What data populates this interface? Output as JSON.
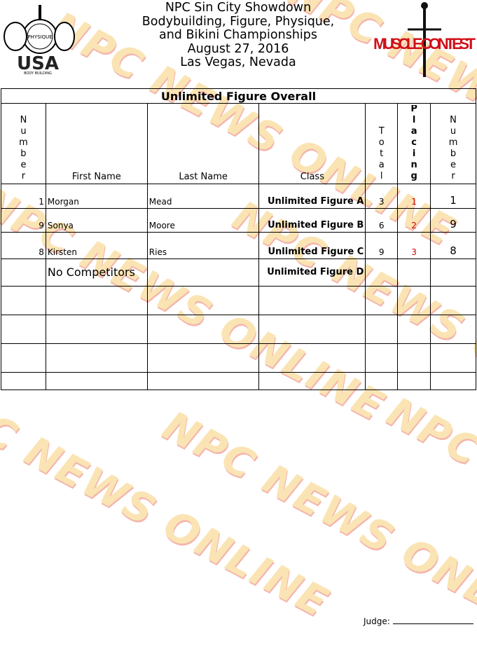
{
  "watermark": "NPC NEWS ONLINE",
  "logos": {
    "left": "NATIONAL PHYSIQUE COMMITTEE USA BODY BUILDING",
    "right": "MUSCLE CONTEST"
  },
  "header": {
    "lines": [
      "NPC Sin City Showdown",
      "Bodybuilding, Figure, Physique,",
      "and Bikini Championships",
      "August 27, 2016",
      "Las Vegas, Nevada"
    ]
  },
  "table": {
    "title": "Unlimited Figure Overall",
    "columns": {
      "number": "Number",
      "first": "First Name",
      "last": "Last Name",
      "class": "Class",
      "total": "Total",
      "placing": "Placing",
      "number2": "Number"
    },
    "rows": [
      {
        "number": "1",
        "first": "Morgan",
        "last": "Mead",
        "class": "Unlimited Figure A",
        "total": "3",
        "placing": "1",
        "number2": "1"
      },
      {
        "number": "9",
        "first": "Sonya",
        "last": "Moore",
        "class": "Unlimited Figure B",
        "total": "6",
        "placing": "2",
        "number2": "9"
      },
      {
        "number": "8",
        "first": "Kirsten",
        "last": "Ries",
        "class": "Unlimited Figure C",
        "total": "9",
        "placing": "3",
        "number2": "8"
      },
      {
        "number": "",
        "first": "No Competitors",
        "last": "",
        "class": "Unlimited Figure D",
        "total": "",
        "placing": "",
        "number2": ""
      }
    ]
  },
  "footer": {
    "judge_label": "Judge:"
  }
}
